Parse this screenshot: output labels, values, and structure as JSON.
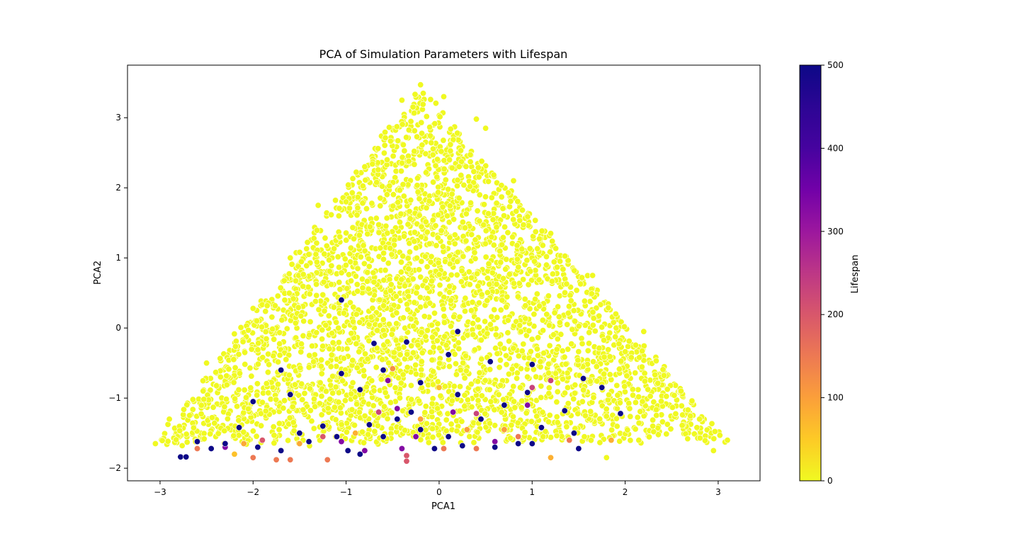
{
  "chart_data": {
    "type": "scatter",
    "title": "PCA of Simulation Parameters with Lifespan",
    "xlabel": "PCA1",
    "ylabel": "PCA2",
    "xlim": [
      -3.35,
      3.45
    ],
    "ylim": [
      -2.18,
      3.75
    ],
    "xticks": [
      -3,
      -2,
      -1,
      0,
      1,
      2,
      3
    ],
    "xtick_labels": [
      "−3",
      "−2",
      "−1",
      "0",
      "1",
      "2",
      "3"
    ],
    "yticks": [
      -2,
      -1,
      0,
      1,
      2,
      3
    ],
    "ytick_labels": [
      "−2",
      "−1",
      "0",
      "1",
      "2",
      "3"
    ],
    "grid": false,
    "colormap": "plasma_r",
    "colorbar": {
      "label": "Lifespan",
      "min": 0,
      "max": 500,
      "ticks": [
        0,
        100,
        200,
        300,
        400,
        500
      ],
      "tick_labels": [
        "0",
        "100",
        "200",
        "300",
        "400",
        "500"
      ]
    },
    "colors": {
      "low_lifespan": "#f0f921",
      "mid_lifespan": "#f89540",
      "high_lifespan": "#0d0887",
      "marker_edge": "#ffffff"
    },
    "distribution": "triangular point cloud with apex near (-0.2, 3.45) and base from (-3.05, -1.65) to (3.1, -1.6); nearly all points at lifespan ~0; high-lifespan points concentrated in the lower band y ≈ -1.9 to -0.2",
    "points": [
      {
        "x": -0.2,
        "y": 3.47,
        "lifespan": 0
      },
      {
        "x": 0.05,
        "y": 3.3,
        "lifespan": 0
      },
      {
        "x": -0.4,
        "y": 3.25,
        "lifespan": 0
      },
      {
        "x": 0.4,
        "y": 2.98,
        "lifespan": 0
      },
      {
        "x": 0.5,
        "y": 2.85,
        "lifespan": 0
      },
      {
        "x": -0.8,
        "y": 2.3,
        "lifespan": 0
      },
      {
        "x": -1.0,
        "y": 1.8,
        "lifespan": 0
      },
      {
        "x": 0.8,
        "y": 2.1,
        "lifespan": 0
      },
      {
        "x": 1.2,
        "y": 1.35,
        "lifespan": 0
      },
      {
        "x": 1.65,
        "y": 0.75,
        "lifespan": 0
      },
      {
        "x": -1.3,
        "y": 1.75,
        "lifespan": 0
      },
      {
        "x": -1.6,
        "y": 1.0,
        "lifespan": 0
      },
      {
        "x": -2.0,
        "y": 0.28,
        "lifespan": 0
      },
      {
        "x": 1.9,
        "y": 0.2,
        "lifespan": 0
      },
      {
        "x": 2.2,
        "y": -0.05,
        "lifespan": 0
      },
      {
        "x": -2.5,
        "y": -0.5,
        "lifespan": 0
      },
      {
        "x": 2.6,
        "y": -0.9,
        "lifespan": 0
      },
      {
        "x": 2.8,
        "y": -1.3,
        "lifespan": 0
      },
      {
        "x": 3.1,
        "y": -1.6,
        "lifespan": 0
      },
      {
        "x": -3.05,
        "y": -1.65,
        "lifespan": 0
      },
      {
        "x": -2.9,
        "y": -1.3,
        "lifespan": 0
      },
      {
        "x": 2.95,
        "y": -1.75,
        "lifespan": 0
      },
      {
        "x": 1.8,
        "y": -1.85,
        "lifespan": 0
      },
      {
        "x": -1.05,
        "y": 0.4,
        "lifespan": 500
      },
      {
        "x": 0.2,
        "y": -0.05,
        "lifespan": 500
      },
      {
        "x": -0.7,
        "y": -0.22,
        "lifespan": 500
      },
      {
        "x": -0.35,
        "y": -0.2,
        "lifespan": 500
      },
      {
        "x": 0.1,
        "y": -0.38,
        "lifespan": 500
      },
      {
        "x": -1.7,
        "y": -0.6,
        "lifespan": 500
      },
      {
        "x": -1.05,
        "y": -0.65,
        "lifespan": 500
      },
      {
        "x": -0.6,
        "y": -0.6,
        "lifespan": 500
      },
      {
        "x": 0.55,
        "y": -0.48,
        "lifespan": 500
      },
      {
        "x": 1.0,
        "y": -0.52,
        "lifespan": 500
      },
      {
        "x": 1.55,
        "y": -0.72,
        "lifespan": 500
      },
      {
        "x": 1.75,
        "y": -0.85,
        "lifespan": 500
      },
      {
        "x": 1.95,
        "y": -1.22,
        "lifespan": 500
      },
      {
        "x": -1.6,
        "y": -0.95,
        "lifespan": 500
      },
      {
        "x": -0.85,
        "y": -0.88,
        "lifespan": 500
      },
      {
        "x": -0.2,
        "y": -0.78,
        "lifespan": 500
      },
      {
        "x": 0.2,
        "y": -0.95,
        "lifespan": 500
      },
      {
        "x": 0.7,
        "y": -1.1,
        "lifespan": 500
      },
      {
        "x": 0.95,
        "y": -0.92,
        "lifespan": 500
      },
      {
        "x": 1.35,
        "y": -1.18,
        "lifespan": 500
      },
      {
        "x": -2.0,
        "y": -1.05,
        "lifespan": 500
      },
      {
        "x": -2.6,
        "y": -1.62,
        "lifespan": 500
      },
      {
        "x": -2.45,
        "y": -1.72,
        "lifespan": 500
      },
      {
        "x": -2.78,
        "y": -1.84,
        "lifespan": 500
      },
      {
        "x": -2.72,
        "y": -1.84,
        "lifespan": 500
      },
      {
        "x": -2.3,
        "y": -1.65,
        "lifespan": 500
      },
      {
        "x": -2.15,
        "y": -1.42,
        "lifespan": 500
      },
      {
        "x": -1.95,
        "y": -1.7,
        "lifespan": 500
      },
      {
        "x": -1.7,
        "y": -1.75,
        "lifespan": 500
      },
      {
        "x": -1.5,
        "y": -1.5,
        "lifespan": 500
      },
      {
        "x": -1.4,
        "y": -1.62,
        "lifespan": 500
      },
      {
        "x": -1.25,
        "y": -1.4,
        "lifespan": 500
      },
      {
        "x": -1.1,
        "y": -1.55,
        "lifespan": 500
      },
      {
        "x": -0.98,
        "y": -1.75,
        "lifespan": 500
      },
      {
        "x": -0.85,
        "y": -1.8,
        "lifespan": 500
      },
      {
        "x": -0.75,
        "y": -1.38,
        "lifespan": 500
      },
      {
        "x": -0.6,
        "y": -1.55,
        "lifespan": 500
      },
      {
        "x": -0.45,
        "y": -1.3,
        "lifespan": 500
      },
      {
        "x": -0.3,
        "y": -1.2,
        "lifespan": 500
      },
      {
        "x": -0.2,
        "y": -1.45,
        "lifespan": 500
      },
      {
        "x": -0.05,
        "y": -1.72,
        "lifespan": 500
      },
      {
        "x": 0.1,
        "y": -1.55,
        "lifespan": 500
      },
      {
        "x": 0.25,
        "y": -1.68,
        "lifespan": 500
      },
      {
        "x": 0.45,
        "y": -1.3,
        "lifespan": 500
      },
      {
        "x": 0.6,
        "y": -1.7,
        "lifespan": 500
      },
      {
        "x": 0.85,
        "y": -1.65,
        "lifespan": 500
      },
      {
        "x": 1.0,
        "y": -1.65,
        "lifespan": 500
      },
      {
        "x": 1.1,
        "y": -1.42,
        "lifespan": 500
      },
      {
        "x": 1.45,
        "y": -1.5,
        "lifespan": 500
      },
      {
        "x": 1.5,
        "y": -1.72,
        "lifespan": 500
      },
      {
        "x": -0.55,
        "y": -0.75,
        "lifespan": 330
      },
      {
        "x": -0.45,
        "y": -1.15,
        "lifespan": 330
      },
      {
        "x": 0.15,
        "y": -1.2,
        "lifespan": 330
      },
      {
        "x": -1.05,
        "y": -1.62,
        "lifespan": 330
      },
      {
        "x": -0.8,
        "y": -1.75,
        "lifespan": 330
      },
      {
        "x": -0.25,
        "y": -1.55,
        "lifespan": 330
      },
      {
        "x": 0.6,
        "y": -1.62,
        "lifespan": 330
      },
      {
        "x": -2.3,
        "y": -1.7,
        "lifespan": 330
      },
      {
        "x": -0.4,
        "y": -1.72,
        "lifespan": 330
      },
      {
        "x": 0.95,
        "y": -1.1,
        "lifespan": 330
      },
      {
        "x": 1.2,
        "y": -0.75,
        "lifespan": 230
      },
      {
        "x": 1.0,
        "y": -0.85,
        "lifespan": 230
      },
      {
        "x": 0.4,
        "y": -1.22,
        "lifespan": 230
      },
      {
        "x": -0.65,
        "y": -1.2,
        "lifespan": 230
      },
      {
        "x": -1.25,
        "y": -1.55,
        "lifespan": 200
      },
      {
        "x": -1.9,
        "y": -1.6,
        "lifespan": 200
      },
      {
        "x": -0.35,
        "y": -1.82,
        "lifespan": 200
      },
      {
        "x": -0.35,
        "y": -1.9,
        "lifespan": 200
      },
      {
        "x": -1.2,
        "y": -1.88,
        "lifespan": 150
      },
      {
        "x": -1.6,
        "y": -1.88,
        "lifespan": 150
      },
      {
        "x": -1.75,
        "y": -1.88,
        "lifespan": 150
      },
      {
        "x": -2.0,
        "y": -1.85,
        "lifespan": 150
      },
      {
        "x": -2.6,
        "y": -1.72,
        "lifespan": 150
      },
      {
        "x": 0.05,
        "y": -1.72,
        "lifespan": 150
      },
      {
        "x": 0.4,
        "y": -1.72,
        "lifespan": 150
      },
      {
        "x": 1.4,
        "y": -1.6,
        "lifespan": 150
      },
      {
        "x": 0.85,
        "y": -1.55,
        "lifespan": 150
      },
      {
        "x": -0.5,
        "y": -0.58,
        "lifespan": 120
      },
      {
        "x": -0.2,
        "y": -1.3,
        "lifespan": 100
      },
      {
        "x": 0.3,
        "y": -1.45,
        "lifespan": 100
      },
      {
        "x": 0.7,
        "y": -1.45,
        "lifespan": 100
      },
      {
        "x": -2.1,
        "y": -1.65,
        "lifespan": 90
      },
      {
        "x": -1.5,
        "y": -1.65,
        "lifespan": 90
      },
      {
        "x": -0.9,
        "y": -1.5,
        "lifespan": 80
      },
      {
        "x": 1.2,
        "y": -1.85,
        "lifespan": 80
      },
      {
        "x": 1.85,
        "y": -1.6,
        "lifespan": 80
      },
      {
        "x": -2.2,
        "y": -1.8,
        "lifespan": 60
      },
      {
        "x": 0.0,
        "y": -0.85,
        "lifespan": 60
      }
    ]
  }
}
